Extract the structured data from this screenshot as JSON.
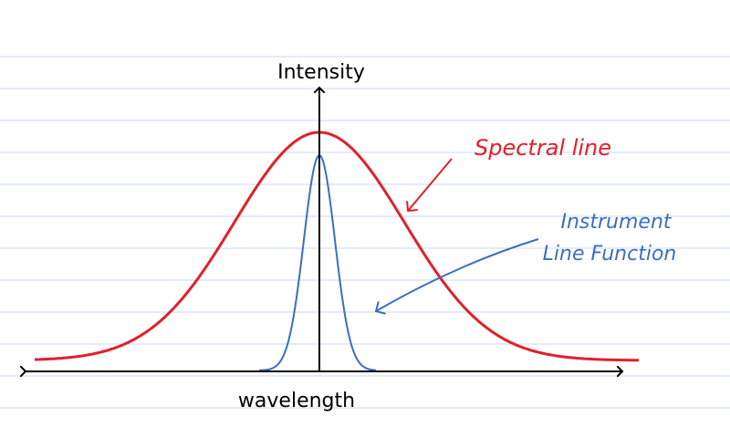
{
  "labels": {
    "y_axis": "Intensity",
    "x_axis": "wavelength",
    "spectral_line": "Spectral line",
    "instrument_line": [
      "Instrument",
      "Line Function"
    ]
  }
}
